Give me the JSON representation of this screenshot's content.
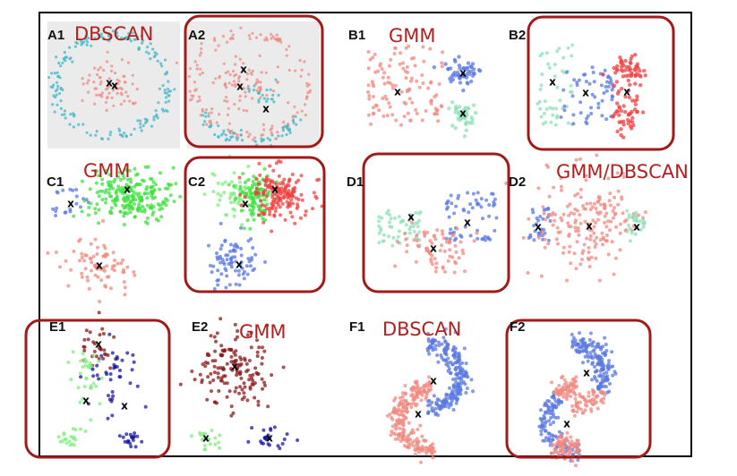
{
  "panels": [
    {
      "id": "A1",
      "label": "A1",
      "method": "DBSCAN",
      "highlighted": false
    },
    {
      "id": "A2",
      "label": "A2",
      "method": "",
      "highlighted": true
    },
    {
      "id": "B1",
      "label": "B1",
      "method": "GMM",
      "highlighted": false
    },
    {
      "id": "B2",
      "label": "B2",
      "method": "",
      "highlighted": true
    },
    {
      "id": "C1",
      "label": "C1",
      "method": "GMM",
      "highlighted": false
    },
    {
      "id": "C2",
      "label": "C2",
      "method": "",
      "highlighted": true
    },
    {
      "id": "D1",
      "label": "D1",
      "method": "",
      "highlighted": true
    },
    {
      "id": "D2",
      "label": "D2",
      "method": "GMM/DBSCAN",
      "highlighted": false
    },
    {
      "id": "E1",
      "label": "E1",
      "method": "",
      "highlighted": true
    },
    {
      "id": "E2",
      "label": "E2",
      "method": "GMM",
      "highlighted": false
    },
    {
      "id": "F1",
      "label": "F1",
      "method": "DBSCAN",
      "highlighted": false
    },
    {
      "id": "F2",
      "label": "F2",
      "method": "",
      "highlighted": true
    }
  ],
  "center_marker": "x",
  "colors": {
    "salmon": "#f08a80",
    "cyan": "#3fb8c8",
    "blue": "#5a78e0",
    "mint": "#8ee0b8",
    "green": "#3ee03e",
    "red": "#f04040",
    "darkred": "#8b1a1a",
    "navy": "#1a1aa0",
    "lime": "#80ee80",
    "highlight": "#a01a1a"
  }
}
